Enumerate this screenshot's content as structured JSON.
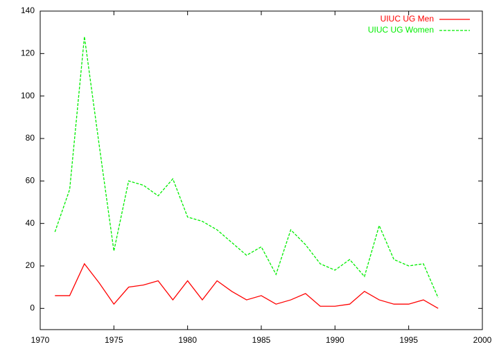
{
  "chart_data": {
    "type": "line",
    "x": [
      1971,
      1972,
      1973,
      1974,
      1975,
      1976,
      1977,
      1978,
      1979,
      1980,
      1981,
      1982,
      1983,
      1984,
      1985,
      1986,
      1987,
      1988,
      1989,
      1990,
      1991,
      1992,
      1993,
      1994,
      1995,
      1996,
      1997
    ],
    "series": [
      {
        "name": "UIUC UG Men",
        "color": "#ff0000",
        "dashed": false,
        "values": [
          6,
          6,
          21,
          12,
          2,
          10,
          11,
          13,
          4,
          13,
          4,
          13,
          8,
          4,
          6,
          2,
          4,
          7,
          1,
          1,
          2,
          8,
          4,
          2,
          2,
          4,
          0
        ]
      },
      {
        "name": "UIUC UG Women",
        "color": "#00ee00",
        "dashed": true,
        "values": [
          36,
          56,
          128,
          77,
          27,
          60,
          58,
          53,
          61,
          43,
          41,
          37,
          31,
          25,
          29,
          16,
          37,
          30,
          21,
          18,
          23,
          15,
          39,
          23,
          20,
          21,
          5
        ]
      }
    ],
    "xlim": [
      1970,
      2000
    ],
    "xticks": [
      1970,
      1975,
      1980,
      1985,
      1990,
      1995,
      2000
    ],
    "ylim": [
      -10,
      140
    ],
    "yticks": [
      0,
      20,
      40,
      60,
      80,
      100,
      120,
      140
    ],
    "grid": false,
    "legend": "top-right"
  }
}
